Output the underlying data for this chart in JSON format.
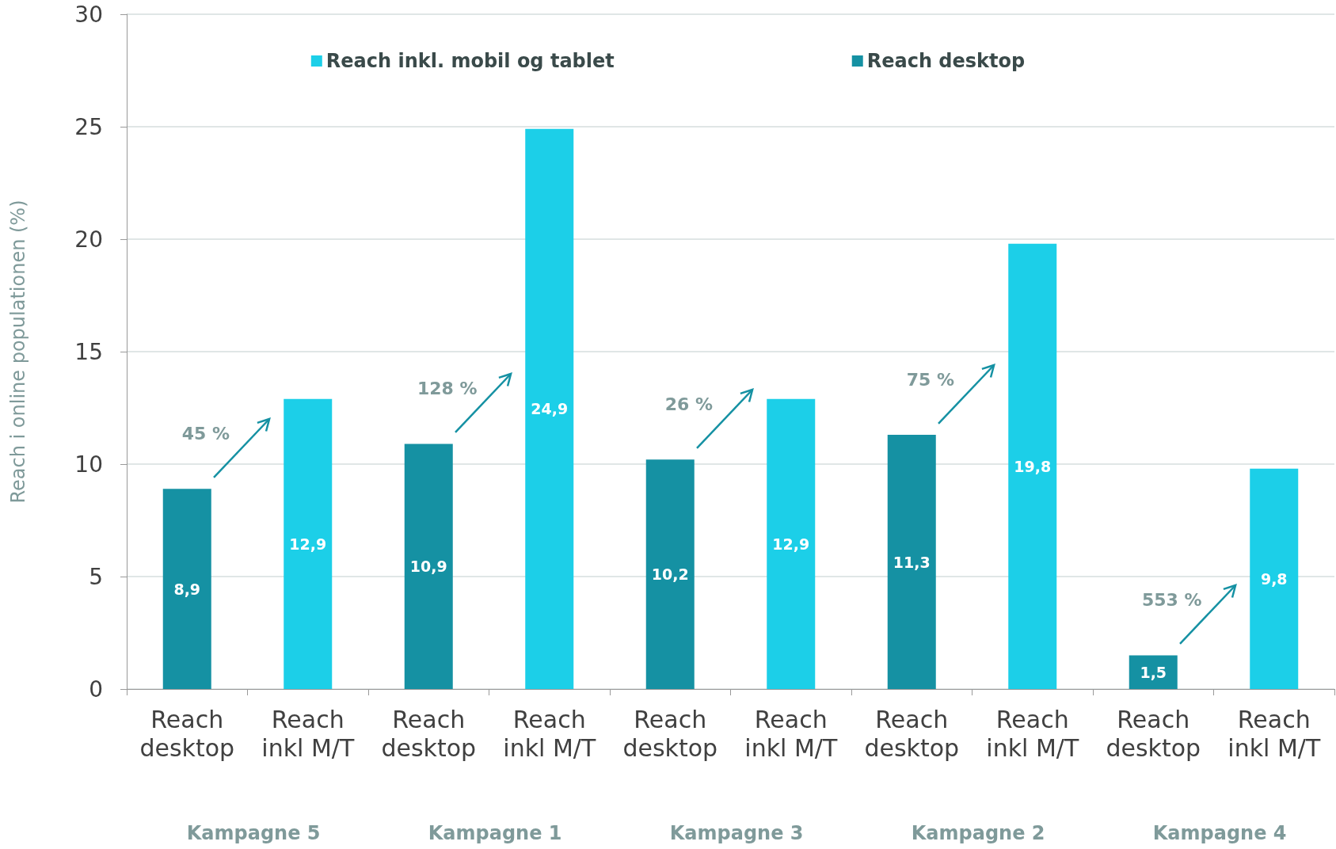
{
  "chart_data": {
    "type": "bar",
    "ylabel": "Reach i online populationen (%)",
    "categories": [
      "Reach\ndesktop",
      "Reach\ninkl M/T",
      "Reach\ndesktop",
      "Reach\ninkl M/T",
      "Reach\ndesktop",
      "Reach\ninkl M/T",
      "Reach\ndesktop",
      "Reach\ninkl M/T",
      "Reach\ndesktop",
      "Reach\ninkl M/T"
    ],
    "series": [
      {
        "name": "Reach inkl. mobil og tablet",
        "color": "#1ccfe8",
        "values": [
          null,
          12.9,
          null,
          24.9,
          null,
          12.9,
          null,
          19.8,
          null,
          9.8
        ],
        "value_labels": [
          null,
          "12,9",
          null,
          "24,9",
          null,
          "12,9",
          null,
          "19,8",
          null,
          "9,8"
        ]
      },
      {
        "name": "Reach desktop",
        "color": "#1591a3",
        "values": [
          8.9,
          null,
          10.9,
          null,
          10.2,
          null,
          11.3,
          null,
          1.5,
          null
        ],
        "value_labels": [
          "8,9",
          null,
          "10,9",
          null,
          "10,2",
          null,
          "11,3",
          null,
          "1,5",
          null
        ]
      }
    ],
    "ylim": [
      0,
      30
    ],
    "yticks": [
      0,
      5,
      10,
      15,
      20,
      25,
      30
    ],
    "grid": "y",
    "legend": "top",
    "annotations": [
      "Kampagne 5",
      "Kampagne 1",
      "Kampagne 3",
      "Kampagne 2",
      "Kampagne 4",
      "45 %",
      "128 %",
      "26 %",
      "75 %",
      "553 %"
    ]
  }
}
